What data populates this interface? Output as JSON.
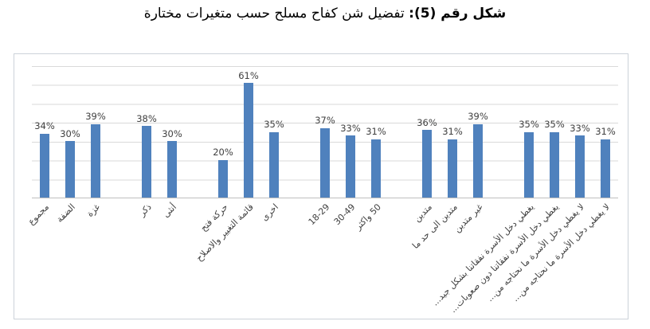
{
  "title": {
    "prefix": "شكل رقم (5):",
    "text": " تفضيل شن كفاح مسلح حسب متغيرات مختارة"
  },
  "chart_data": {
    "type": "bar",
    "title": "شكل رقم (5): تفضيل شن كفاح مسلح حسب متغيرات مختارة",
    "xlabel": "",
    "ylabel": "",
    "ylim": [
      0,
      70
    ],
    "grid": "horizontal lines every 10%, y-axis tick labels hidden",
    "legend": "none",
    "value_suffix": "%",
    "colors": {
      "bar": "#4f81bd",
      "gridline": "#d9d9d9",
      "axis_line": "#bfbfbf",
      "chart_border": "#ccd2d9",
      "label_text": "#404040"
    },
    "groups": [
      {
        "name": "region",
        "bars": [
          {
            "label": "مجموع",
            "value": 34,
            "display": "34%"
          },
          {
            "label": "الضفة",
            "value": 30,
            "display": "30%"
          },
          {
            "label": "غزة",
            "value": 39,
            "display": "39%"
          }
        ]
      },
      {
        "name": "gender",
        "bars": [
          {
            "label": "ذكر",
            "value": 38,
            "display": "38%"
          },
          {
            "label": "أنثى",
            "value": 30,
            "display": "30%"
          }
        ]
      },
      {
        "name": "party",
        "bars": [
          {
            "label": "حركة فتح",
            "value": 20,
            "display": "20%"
          },
          {
            "label": "قائمة التغيير والاصلاح",
            "value": 61,
            "display": "61%"
          },
          {
            "label": "اخرى",
            "value": 35,
            "display": "35%"
          }
        ]
      },
      {
        "name": "age",
        "bars": [
          {
            "label": "18-29",
            "value": 37,
            "display": "37%"
          },
          {
            "label": "30-49",
            "value": 33,
            "display": "33%"
          },
          {
            "label": "50 واكثر",
            "value": 31,
            "display": "31%"
          }
        ]
      },
      {
        "name": "religiosity",
        "bars": [
          {
            "label": "متدين",
            "value": 36,
            "display": "36%"
          },
          {
            "label": "متدين الى حد ما",
            "value": 31,
            "display": "31%"
          },
          {
            "label": "غير متدين",
            "value": 39,
            "display": "39%"
          }
        ]
      },
      {
        "name": "income",
        "bars": [
          {
            "label": "يغطي دخل الأسرة نفقاتنا بشكل جيد...",
            "value": 35,
            "display": "35%"
          },
          {
            "label": "يغطي دخل الأسرة نفقاتنا دون صعوبات...",
            "value": 35,
            "display": "35%"
          },
          {
            "label": "لا يغطي دخل الأسرة ما نحتاجه من...",
            "value": 33,
            "display": "33%"
          },
          {
            "label": "لا يغطي دخل الأسرة ما نحتاجه من...",
            "value": 31,
            "display": "31%"
          }
        ]
      }
    ]
  }
}
